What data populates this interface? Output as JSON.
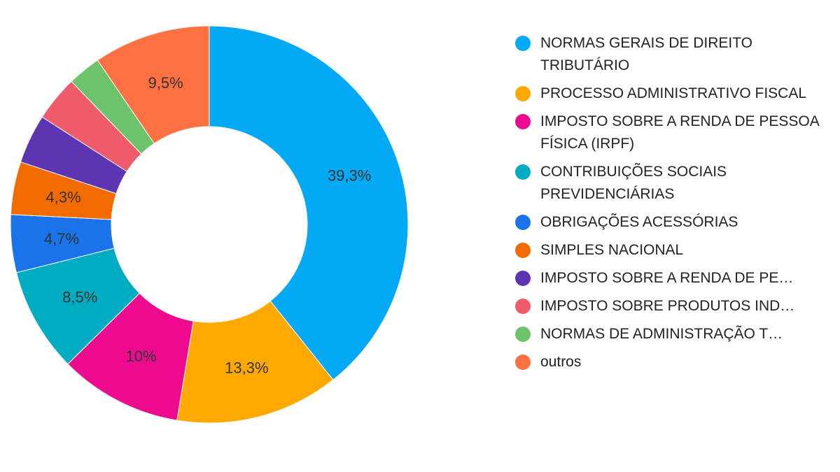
{
  "chart_data": {
    "type": "pie",
    "title": "",
    "legend_position": "right",
    "donut": true,
    "slices": [
      {
        "label": "NORMAS GERAIS DE DIREITO TRIBUTÁRIO",
        "legend_text": "NORMAS GERAIS DE DIREITO TRIBUTÁRIO",
        "value": 39.3,
        "data_label": "39,3%",
        "color": "#03A9F4"
      },
      {
        "label": "PROCESSO ADMINISTRATIVO FISCAL",
        "legend_text": "PROCESSO ADMINISTRATIVO FISCAL",
        "value": 13.3,
        "data_label": "13,3%",
        "color": "#FFA800"
      },
      {
        "label": "IMPOSTO SOBRE A RENDA DE PESSOA FÍSICA (IRPF)",
        "legend_text": "IMPOSTO SOBRE A RENDA DE PESSOA FÍSICA (IRPF)",
        "value": 10.0,
        "data_label": "10%",
        "color": "#EC0A8E"
      },
      {
        "label": "CONTRIBUIÇÕES SOCIAIS PREVIDENCIÁRIAS",
        "legend_text": "CONTRIBUIÇÕES SOCIAIS PREVIDENCIÁRIAS",
        "value": 8.5,
        "data_label": "8,5%",
        "color": "#00ACC1"
      },
      {
        "label": "OBRIGAÇÕES ACESSÓRIAS",
        "legend_text": "OBRIGAÇÕES ACESSÓRIAS",
        "value": 4.7,
        "data_label": "4,7%",
        "color": "#1A73E8"
      },
      {
        "label": "SIMPLES NACIONAL",
        "legend_text": "SIMPLES NACIONAL",
        "value": 4.3,
        "data_label": "4,3%",
        "color": "#F26B00"
      },
      {
        "label": "IMPOSTO SOBRE A RENDA DE PE…",
        "legend_text": "IMPOSTO SOBRE A RENDA DE PE…",
        "value": 4.0,
        "data_label": "",
        "color": "#5E35B1"
      },
      {
        "label": "IMPOSTO SOBRE PRODUTOS IND…",
        "legend_text": "IMPOSTO SOBRE PRODUTOS IND…",
        "value": 3.7,
        "data_label": "",
        "color": "#EF5B6B"
      },
      {
        "label": "NORMAS DE ADMINISTRAÇÃO T…",
        "legend_text": "NORMAS DE ADMINISTRAÇÃO T…",
        "value": 2.7,
        "data_label": "",
        "color": "#6CC36C"
      },
      {
        "label": "outros",
        "legend_text": "outros",
        "value": 9.5,
        "data_label": "9,5%",
        "color": "#FF7043"
      }
    ]
  }
}
